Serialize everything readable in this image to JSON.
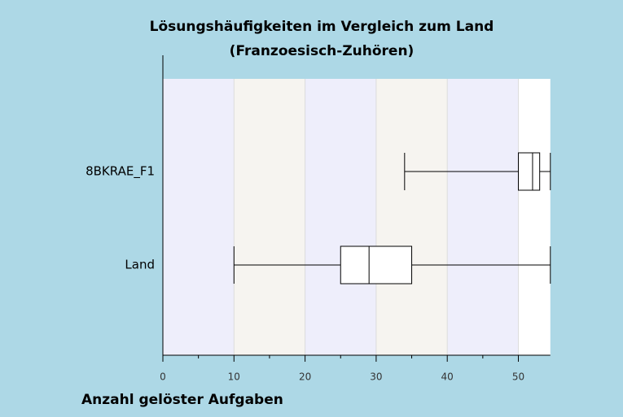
{
  "chart_data": {
    "type": "boxplot",
    "orientation": "horizontal",
    "title": "Lösungshäufigkeiten im Vergleich zum Land",
    "subtitle": "(Franzoesisch-Zuhören)",
    "x_label": "Anzahl gelöster Aufgaben",
    "categories": [
      "8BKRAE_F1",
      "Land"
    ],
    "boxes": [
      {
        "min": 34,
        "q1": 50,
        "median": 52,
        "q3": 53,
        "max": 54.5
      },
      {
        "min": 10,
        "q1": 25,
        "median": 29,
        "q3": 35,
        "max": 54.5
      }
    ],
    "xlim": [
      0,
      54.5
    ],
    "xticks": [
      0,
      10,
      20,
      30,
      40,
      50
    ],
    "minor_xticks": [
      5,
      15,
      25,
      35,
      45
    ],
    "grid": true,
    "band_colors": [
      "#eeeefb",
      "#f6f4f0"
    ],
    "box_color": "#ffffff"
  }
}
